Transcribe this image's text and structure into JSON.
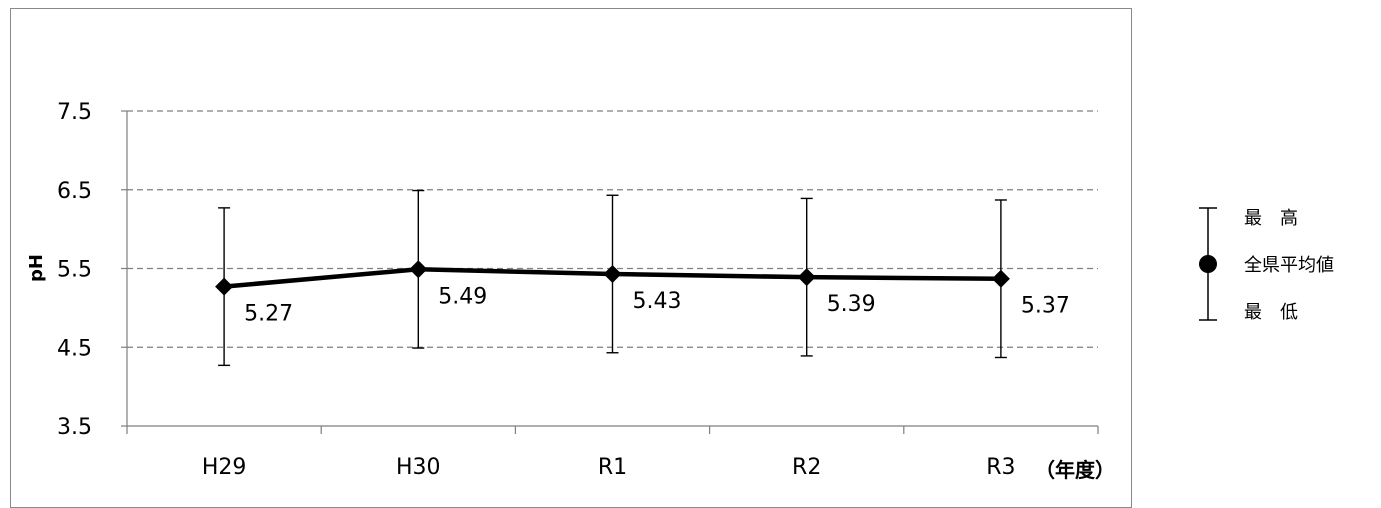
{
  "chart_data": {
    "type": "line",
    "x": [
      "H29",
      "H30",
      "R1",
      "R2",
      "R3"
    ],
    "series": [
      {
        "name": "全県平均値",
        "values": [
          5.27,
          5.49,
          5.43,
          5.39,
          5.37
        ],
        "labels": [
          "5.27",
          "5.49",
          "5.43",
          "5.39",
          "5.37"
        ]
      }
    ],
    "error_bars": {
      "max": [
        6.27,
        6.49,
        6.43,
        6.39,
        6.37
      ],
      "min": [
        4.27,
        4.49,
        4.43,
        4.39,
        4.37
      ]
    },
    "ylabel": "pH",
    "xunit": "（年度）",
    "ylim": [
      3.5,
      7.5
    ],
    "yticks": [
      "3.5",
      "4.5",
      "5.5",
      "6.5",
      "7.5"
    ],
    "grid": "horizontal dashed",
    "legend": {
      "position": "right",
      "max_label": "最　高",
      "mean_label": "全県平均値",
      "min_label": "最　低"
    },
    "colors": {
      "line": "#000000",
      "grid": "#7f7f7f",
      "axis": "#7f7f7f"
    }
  }
}
